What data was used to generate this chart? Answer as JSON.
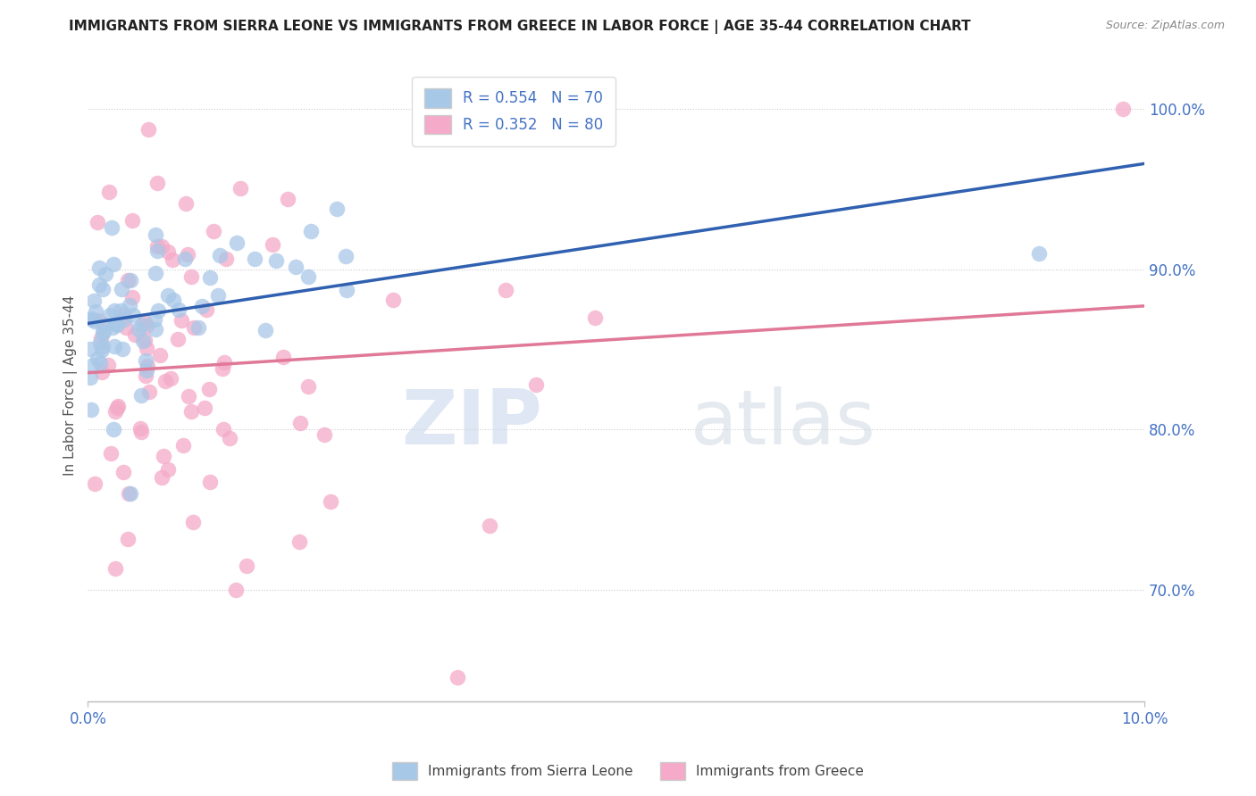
{
  "title": "IMMIGRANTS FROM SIERRA LEONE VS IMMIGRANTS FROM GREECE IN LABOR FORCE | AGE 35-44 CORRELATION CHART",
  "source": "Source: ZipAtlas.com",
  "ylabel": "In Labor Force | Age 35-44",
  "legend_r_sierra": "R = 0.554",
  "legend_n_sierra": "N = 70",
  "legend_r_greece": "R = 0.352",
  "legend_n_greece": "N = 80",
  "sierra_color": "#a8c8e8",
  "greece_color": "#f4aac8",
  "sierra_line_color": "#3060b0",
  "greece_line_color": "#e07898",
  "watermark_zip": "ZIP",
  "watermark_atlas": "atlas",
  "xlim": [
    0.0,
    10.0
  ],
  "ylim": [
    63.0,
    102.5
  ],
  "right_yticks": [
    70,
    80,
    90,
    100
  ],
  "right_yticklabels": [
    "70.0%",
    "80.0%",
    "90.0%",
    "100.0%"
  ],
  "sierra_seed": 42,
  "greece_seed": 123,
  "sierra_n": 70,
  "greece_n": 80,
  "sierra_r": 0.554,
  "greece_r": 0.352
}
